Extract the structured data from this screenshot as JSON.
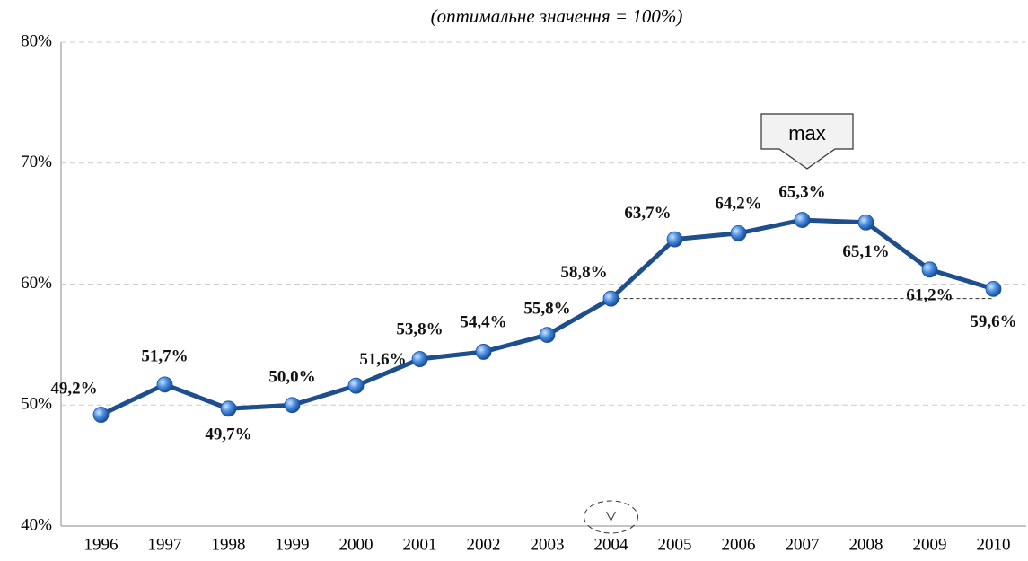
{
  "chart_data": {
    "type": "line",
    "subtitle": "(оптимальне значення = 100%)",
    "categories": [
      "1996",
      "1997",
      "1998",
      "1999",
      "2000",
      "2001",
      "2002",
      "2003",
      "2004",
      "2005",
      "2006",
      "2007",
      "2008",
      "2009",
      "2010"
    ],
    "series": [
      {
        "name": "",
        "color": "#1f4e8c",
        "values": [
          49.2,
          51.7,
          49.7,
          50.0,
          51.6,
          53.8,
          54.4,
          55.8,
          58.8,
          63.7,
          64.2,
          65.3,
          65.1,
          61.2,
          59.6
        ],
        "value_labels": [
          "49,2%",
          "51,7%",
          "49,7%",
          "50,0%",
          "51,6%",
          "53,8%",
          "54,4%",
          "55,8%",
          "58,8%",
          "63,7%",
          "64,2%",
          "65,3%",
          "65,1%",
          "61,2%",
          "59,6%"
        ]
      }
    ],
    "ylim": [
      40,
      80
    ],
    "yticks": [
      {
        "value": 40,
        "label": "40%"
      },
      {
        "value": 50,
        "label": "50%"
      },
      {
        "value": 60,
        "label": "60%"
      },
      {
        "value": 70,
        "label": "70%"
      },
      {
        "value": 80,
        "label": "80%"
      }
    ],
    "grid": true,
    "annotation": "max"
  }
}
